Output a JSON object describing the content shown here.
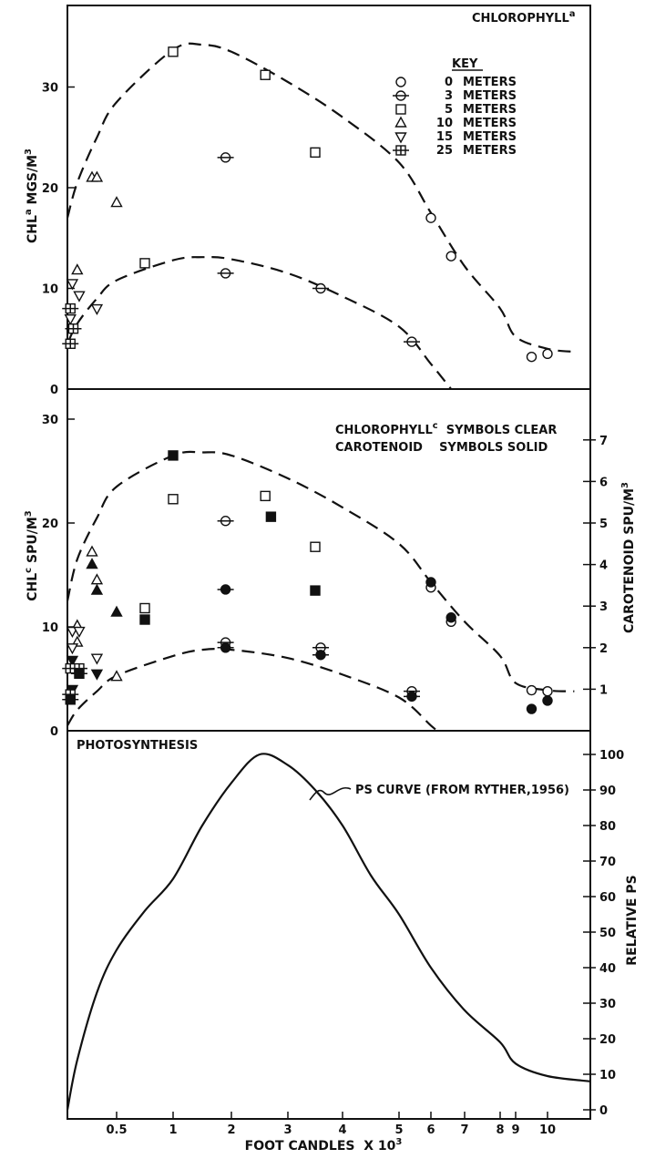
{
  "chart_data": [
    {
      "type": "scatter",
      "panel": "top",
      "title": "CHLOROPHYLL a",
      "ylabel": "CHL a MGS/M3",
      "ylim": [
        0,
        35
      ],
      "y_ticks": [
        "0",
        "10",
        "20",
        "30"
      ],
      "key": {
        "heading": "KEY",
        "entries": [
          {
            "symbol": "circle",
            "label": "0 METERS"
          },
          {
            "symbol": "circle-bar",
            "label": "3 METERS"
          },
          {
            "symbol": "square",
            "label": "5 METERS"
          },
          {
            "symbol": "triangle",
            "label": "10 METERS"
          },
          {
            "symbol": "triangle-down",
            "label": "15 METERS"
          },
          {
            "symbol": "square-bar",
            "label": "25 METERS"
          }
        ]
      },
      "points": [
        {
          "symbol": "square",
          "x": 1.0,
          "y": 33.5
        },
        {
          "symbol": "square",
          "x": 2.6,
          "y": 31.2
        },
        {
          "symbol": "square",
          "x": 3.5,
          "y": 23.5
        },
        {
          "symbol": "square",
          "x": 0.75,
          "y": 12.5
        },
        {
          "symbol": "circle-bar",
          "x": 1.9,
          "y": 23.0
        },
        {
          "symbol": "circle-bar",
          "x": 1.9,
          "y": 11.5
        },
        {
          "symbol": "circle-bar",
          "x": 3.6,
          "y": 10.0
        },
        {
          "symbol": "circle-bar",
          "x": 5.4,
          "y": 4.7
        },
        {
          "symbol": "circle",
          "x": 6.0,
          "y": 17.0
        },
        {
          "symbol": "circle",
          "x": 6.6,
          "y": 13.2
        },
        {
          "symbol": "circle",
          "x": 9.5,
          "y": 3.2
        },
        {
          "symbol": "circle",
          "x": 10.0,
          "y": 3.5
        },
        {
          "symbol": "triangle",
          "x": 0.25,
          "y": 21.0
        },
        {
          "symbol": "triangle",
          "x": 0.3,
          "y": 21.0
        },
        {
          "symbol": "triangle",
          "x": 0.5,
          "y": 18.5
        },
        {
          "symbol": "triangle",
          "x": 0.1,
          "y": 11.8
        },
        {
          "symbol": "triangle-down",
          "x": 0.05,
          "y": 10.5
        },
        {
          "symbol": "triangle-down",
          "x": 0.12,
          "y": 9.3
        },
        {
          "symbol": "triangle-down",
          "x": 0.3,
          "y": 8.0
        },
        {
          "symbol": "triangle-down",
          "x": 0.03,
          "y": 7.0
        },
        {
          "symbol": "square-bar",
          "x": 0.03,
          "y": 8.0
        },
        {
          "symbol": "square-bar",
          "x": 0.06,
          "y": 6.0
        },
        {
          "symbol": "square-bar",
          "x": 0.03,
          "y": 4.5
        }
      ],
      "curves": [
        {
          "style": "dashed",
          "x": [
            0,
            0.1,
            0.3,
            0.5,
            1,
            1.5,
            2,
            3,
            4,
            5,
            6,
            7,
            8,
            9,
            10,
            10.5
          ],
          "y": [
            17,
            20.5,
            25,
            28.5,
            33.7,
            34.2,
            33.5,
            30.5,
            27,
            22.5,
            17.5,
            12.2,
            8,
            5.2,
            4,
            3.7
          ]
        },
        {
          "style": "dashed",
          "x": [
            0,
            0.1,
            0.3,
            0.5,
            1,
            1.5,
            2,
            3,
            4,
            5,
            6,
            6.6
          ],
          "y": [
            4.5,
            6.5,
            9,
            10.8,
            12.8,
            13.1,
            12.9,
            11.5,
            9.2,
            6.2,
            2.5,
            0
          ]
        }
      ]
    },
    {
      "type": "scatter",
      "panel": "middle",
      "legend_text": {
        "line1": "CHLOROPHYLL c  SYMBOLS CLEAR",
        "line2": "CAROTENOID  SYMBOLS SOLID"
      },
      "ylabel": "CHL c SPU/M3",
      "ylabel_right": "CAROTENOID SPU/M3",
      "ylim": [
        0,
        30
      ],
      "y_ticks": [
        "0",
        "10",
        "20",
        "30"
      ],
      "ylim_right": [
        0,
        7.5
      ],
      "y_ticks_right": [
        "1",
        "2",
        "3",
        "4",
        "5",
        "6",
        "7"
      ],
      "points": [
        {
          "symbol": "square",
          "x": 1.0,
          "y": 22.3
        },
        {
          "symbol": "square",
          "x": 2.6,
          "y": 22.6
        },
        {
          "symbol": "square",
          "x": 3.5,
          "y": 17.7
        },
        {
          "symbol": "square",
          "x": 0.75,
          "y": 11.8
        },
        {
          "symbol": "square",
          "x": 1.0,
          "y": 26.5,
          "filled": true
        },
        {
          "symbol": "square",
          "x": 2.7,
          "y": 20.6,
          "filled": true
        },
        {
          "symbol": "square",
          "x": 3.5,
          "y": 13.5,
          "filled": true
        },
        {
          "symbol": "square",
          "x": 0.75,
          "y": 10.7,
          "filled": true
        },
        {
          "symbol": "circle-bar",
          "x": 1.9,
          "y": 20.2
        },
        {
          "symbol": "circle-bar",
          "x": 1.9,
          "y": 8.5
        },
        {
          "symbol": "circle-bar",
          "x": 3.6,
          "y": 8.0
        },
        {
          "symbol": "circle-bar",
          "x": 5.4,
          "y": 3.8
        },
        {
          "symbol": "circle-bar",
          "x": 1.9,
          "y": 13.6,
          "filled": true
        },
        {
          "symbol": "circle-bar",
          "x": 1.9,
          "y": 8.0,
          "filled": true
        },
        {
          "symbol": "circle-bar",
          "x": 3.6,
          "y": 7.3,
          "filled": true
        },
        {
          "symbol": "circle-bar",
          "x": 5.4,
          "y": 3.3,
          "filled": true
        },
        {
          "symbol": "circle",
          "x": 6.0,
          "y": 13.8
        },
        {
          "symbol": "circle",
          "x": 6.6,
          "y": 10.5
        },
        {
          "symbol": "circle",
          "x": 9.5,
          "y": 3.9
        },
        {
          "symbol": "circle",
          "x": 10.0,
          "y": 3.8
        },
        {
          "symbol": "circle",
          "x": 6.0,
          "y": 14.3,
          "filled": true
        },
        {
          "symbol": "circle",
          "x": 6.6,
          "y": 10.9,
          "filled": true
        },
        {
          "symbol": "circle",
          "x": 9.5,
          "y": 2.1,
          "filled": true
        },
        {
          "symbol": "circle",
          "x": 10.0,
          "y": 2.9,
          "filled": true
        },
        {
          "symbol": "triangle",
          "x": 0.25,
          "y": 17.2
        },
        {
          "symbol": "triangle",
          "x": 0.3,
          "y": 14.5
        },
        {
          "symbol": "triangle",
          "x": 0.1,
          "y": 10.1
        },
        {
          "symbol": "triangle",
          "x": 0.1,
          "y": 8.5
        },
        {
          "symbol": "triangle",
          "x": 0.5,
          "y": 5.2
        },
        {
          "symbol": "triangle",
          "x": 0.25,
          "y": 16.0,
          "filled": true
        },
        {
          "symbol": "triangle",
          "x": 0.3,
          "y": 13.5,
          "filled": true
        },
        {
          "symbol": "triangle",
          "x": 0.5,
          "y": 11.4,
          "filled": true
        },
        {
          "symbol": "triangle-down",
          "x": 0.05,
          "y": 9.6
        },
        {
          "symbol": "triangle-down",
          "x": 0.12,
          "y": 9.6
        },
        {
          "symbol": "triangle-down",
          "x": 0.05,
          "y": 8.0
        },
        {
          "symbol": "triangle-down",
          "x": 0.3,
          "y": 7.0
        },
        {
          "symbol": "triangle-down",
          "x": 0.05,
          "y": 6.8,
          "filled": true
        },
        {
          "symbol": "triangle-down",
          "x": 0.3,
          "y": 5.5,
          "filled": true
        },
        {
          "symbol": "triangle-down",
          "x": 0.05,
          "y": 4.0,
          "filled": true
        },
        {
          "symbol": "square-bar",
          "x": 0.03,
          "y": 6.0
        },
        {
          "symbol": "square-bar",
          "x": 0.12,
          "y": 6.0
        },
        {
          "symbol": "square-bar",
          "x": 0.03,
          "y": 3.5
        },
        {
          "symbol": "square-bar",
          "x": 0.12,
          "y": 5.5,
          "filled": true
        },
        {
          "symbol": "square-bar",
          "x": 0.03,
          "y": 3.0,
          "filled": true
        }
      ],
      "curves": [
        {
          "style": "dashed",
          "x": [
            0,
            0.1,
            0.3,
            0.5,
            1,
            1.5,
            2,
            3,
            4,
            5,
            6,
            7,
            8,
            9,
            10,
            10.5
          ],
          "y": [
            12.5,
            16.5,
            20.5,
            23.5,
            26.5,
            26.8,
            26.5,
            24.3,
            21.5,
            18,
            14.3,
            10.5,
            7.2,
            4.6,
            3.9,
            3.8
          ]
        },
        {
          "style": "dashed",
          "x": [
            0,
            0.1,
            0.3,
            0.5,
            1,
            1.5,
            2,
            3,
            4,
            5,
            6,
            6.2
          ],
          "y": [
            0.5,
            2,
            3.8,
            5.3,
            7.2,
            7.8,
            7.8,
            7,
            5.4,
            3.2,
            0.5,
            0
          ]
        }
      ]
    },
    {
      "type": "line",
      "panel": "bottom",
      "title": "PHOTOSYNTHESIS",
      "ylabel_right": "RELATIVE PS",
      "ylim_right": [
        0,
        100
      ],
      "y_ticks_right": [
        "0",
        "10",
        "20",
        "30",
        "40",
        "50",
        "60",
        "70",
        "80",
        "90",
        "100"
      ],
      "annotation": "PS CURVE (FROM RYTHER,1956)",
      "series": [
        {
          "x": [
            0,
            0.1,
            0.3,
            0.5,
            0.75,
            1,
            1.5,
            2,
            2.5,
            3,
            3.5,
            4,
            4.5,
            5,
            6,
            7,
            8,
            9,
            10,
            10.8
          ],
          "y": [
            0,
            14,
            33,
            45,
            56,
            65,
            80,
            92,
            100,
            97,
            90,
            80,
            66,
            55,
            40,
            28,
            19,
            13,
            9.5,
            8
          ]
        }
      ]
    }
  ],
  "x_axis": {
    "label": "FOOT CANDLES X 10 3",
    "label_main": "FOOT CANDLES  X 10",
    "label_exp": "3",
    "ticks": [
      "0.5",
      "1",
      "2",
      "3",
      "4",
      "5",
      "6",
      "7",
      "8",
      "9",
      "10"
    ]
  },
  "texts": {
    "top_title_main": "CHLOROPHYLL",
    "top_title_sub": "a",
    "top_ylabel_main": "CHL",
    "top_ylabel_sup": "a",
    "top_ylabel_rest": " MGS/M",
    "top_ylabel_exp": "3",
    "mid_legend_l1_main": "CHLOROPHYLL",
    "mid_legend_l1_sup": "c",
    "mid_legend_l1_rest": "  SYMBOLS CLEAR",
    "mid_legend_l2": "CAROTENOID    SYMBOLS SOLID",
    "mid_ylabel_main": "CHL",
    "mid_ylabel_sup": "c",
    "mid_ylabel_rest": " SPU/M",
    "mid_ylabel_exp": "3",
    "mid_ylabel_right_main": "CAROTENOID SPU/M",
    "mid_ylabel_right_exp": "3",
    "bottom_title": "PHOTOSYNTHESIS",
    "bottom_ylabel_right": "RELATIVE PS",
    "annotation": "PS CURVE (FROM RYTHER,1956)"
  }
}
